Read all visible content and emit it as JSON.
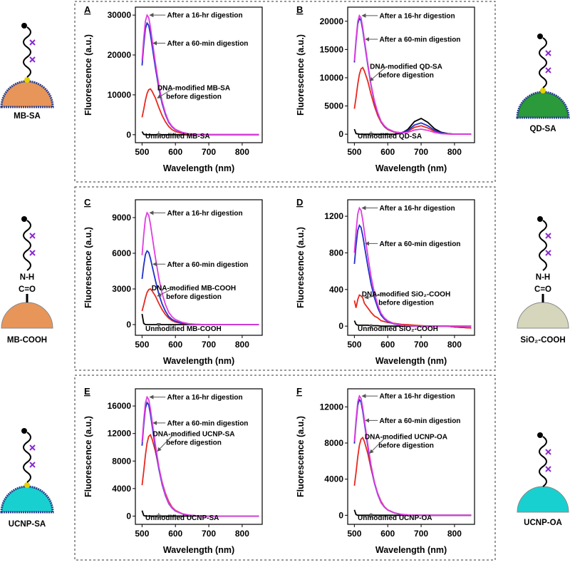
{
  "chart_data": [
    {
      "type": "line",
      "panel": "A",
      "xlabel": "Wavelength (nm)",
      "ylabel": "Fluorescence (a.u.)",
      "xlim": [
        480,
        860
      ],
      "ylim": [
        -2000,
        32000
      ],
      "xticks": [
        500,
        600,
        700,
        800
      ],
      "yticks": [
        0,
        10000,
        20000,
        30000
      ],
      "x": [
        500,
        505,
        510,
        515,
        520,
        525,
        530,
        540,
        550,
        560,
        570,
        580,
        590,
        600,
        620,
        640,
        660,
        680,
        700,
        720,
        740,
        760,
        780,
        800,
        850
      ],
      "series": [
        {
          "name": "Unmodified MB-SA",
          "color": "#000000",
          "values": [
            800,
            100,
            0,
            0,
            0,
            0,
            0,
            0,
            0,
            0,
            0,
            0,
            0,
            0,
            0,
            0,
            0,
            0,
            0,
            0,
            0,
            0,
            0,
            0,
            0
          ]
        },
        {
          "name": [
            "DNA-modified MB-SA",
            "before digestion"
          ],
          "color": "#e8281e",
          "values": [
            4370,
            6325,
            8625,
            10350,
            11270,
            11500,
            10925,
            9200,
            6900,
            4830,
            3220,
            2070,
            1265,
            805,
            345,
            138,
            58,
            23,
            0,
            0,
            0,
            0,
            0,
            0,
            0
          ]
        },
        {
          "name": "After a 60-min digestion",
          "color": "#2030c8",
          "values": [
            17360,
            22400,
            26600,
            28000,
            27440,
            25200,
            22400,
            16800,
            11760,
            7840,
            5040,
            3080,
            1960,
            1260,
            560,
            224,
            84,
            28,
            0,
            0,
            0,
            0,
            0,
            0,
            0
          ]
        },
        {
          "name": "After a 16-hr digestion",
          "color": "#e03ce0",
          "values": [
            18600,
            24000,
            28500,
            30000,
            29400,
            27000,
            24000,
            18000,
            12600,
            8400,
            5400,
            3300,
            2100,
            1350,
            600,
            240,
            90,
            30,
            0,
            0,
            0,
            0,
            0,
            0,
            0
          ]
        }
      ]
    },
    {
      "type": "line",
      "panel": "B",
      "xlabel": "Wavelength (nm)",
      "ylabel": "Fluorescence (a.u.)",
      "xlim": [
        480,
        860
      ],
      "ylim": [
        -1500,
        22500
      ],
      "xticks": [
        500,
        600,
        700,
        800
      ],
      "yticks": [
        0,
        5000,
        10000,
        15000,
        20000
      ],
      "x": [
        500,
        505,
        510,
        515,
        520,
        525,
        530,
        540,
        550,
        560,
        570,
        580,
        590,
        600,
        620,
        640,
        660,
        680,
        700,
        720,
        740,
        760,
        780,
        800,
        850
      ],
      "series": [
        {
          "name": "Unmodified QD-SA",
          "color": "#000000",
          "values": [
            900,
            100,
            50,
            0,
            0,
            0,
            0,
            0,
            0,
            0,
            0,
            0,
            0,
            0,
            0,
            140,
            840,
            2240,
            2800,
            2100,
            980,
            340,
            110,
            0,
            0
          ]
        },
        {
          "name": [
            "DNA-modified QD-SA",
            "before digestion"
          ],
          "color": "#e8281e",
          "values": [
            4500,
            6500,
            8850,
            10600,
            11560,
            11800,
            11200,
            9440,
            7080,
            4960,
            3300,
            2120,
            1300,
            830,
            350,
            220,
            510,
            1220,
            1500,
            1120,
            520,
            180,
            60,
            0,
            0
          ]
        },
        {
          "name": "After a 60-min digestion",
          "color": "#2030c8",
          "values": [
            12700,
            16400,
            19500,
            20500,
            20100,
            18450,
            16400,
            12300,
            8600,
            5700,
            3700,
            2250,
            1430,
            920,
            410,
            260,
            640,
            1620,
            2000,
            1500,
            700,
            240,
            80,
            0,
            0
          ]
        },
        {
          "name": "After a 16-hr digestion",
          "color": "#e03ce0",
          "values": [
            13000,
            16800,
            19950,
            21000,
            20600,
            18900,
            16800,
            12600,
            8800,
            5900,
            3800,
            2300,
            1500,
            950,
            420,
            210,
            330,
            740,
            900,
            680,
            320,
            110,
            40,
            0,
            0
          ]
        }
      ]
    },
    {
      "type": "line",
      "panel": "C",
      "xlabel": "Wavelength (nm)",
      "ylabel": "Fluorescence (a.u.)",
      "xlim": [
        480,
        860
      ],
      "ylim": [
        -900,
        10500
      ],
      "xticks": [
        500,
        600,
        700,
        800
      ],
      "yticks": [
        0,
        3000,
        6000,
        9000
      ],
      "x": [
        500,
        505,
        510,
        515,
        520,
        525,
        530,
        540,
        550,
        560,
        570,
        580,
        590,
        600,
        620,
        640,
        660,
        680,
        700,
        720,
        740,
        760,
        780,
        800,
        850
      ],
      "series": [
        {
          "name": "Unmodified MB-COOH",
          "color": "#000000",
          "values": [
            900,
            100,
            0,
            0,
            0,
            0,
            0,
            0,
            0,
            0,
            0,
            0,
            0,
            0,
            0,
            0,
            0,
            0,
            0,
            0,
            0,
            0,
            0,
            0,
            0
          ]
        },
        {
          "name": [
            "DNA-modified MB-COOH",
            "before digestion"
          ],
          "color": "#e8281e",
          "values": [
            1140,
            1650,
            2250,
            2700,
            2940,
            3000,
            2850,
            2400,
            1800,
            1260,
            840,
            540,
            330,
            210,
            90,
            36,
            15,
            6,
            0,
            0,
            0,
            0,
            0,
            0,
            0
          ]
        },
        {
          "name": "After a 60-min digestion",
          "color": "#2030c8",
          "values": [
            3840,
            4960,
            5890,
            6200,
            6080,
            5580,
            4960,
            3720,
            2600,
            1740,
            1120,
            680,
            430,
            280,
            120,
            50,
            19,
            6,
            0,
            0,
            0,
            0,
            0,
            0,
            0
          ]
        },
        {
          "name": "After a 16-hr digestion",
          "color": "#e03ce0",
          "values": [
            5830,
            7520,
            8930,
            9400,
            9210,
            8460,
            7520,
            5640,
            3950,
            2630,
            1690,
            1030,
            660,
            420,
            190,
            75,
            28,
            9,
            0,
            0,
            0,
            0,
            0,
            0,
            0
          ]
        }
      ]
    },
    {
      "type": "line",
      "panel": "D",
      "xlabel": "Wavelength (nm)",
      "ylabel": "Fluorescence (a.u.)",
      "xlim": [
        480,
        860
      ],
      "ylim": [
        -100,
        1380
      ],
      "xticks": [
        500,
        600,
        700,
        800
      ],
      "yticks": [
        0,
        400,
        800,
        1200
      ],
      "x": [
        500,
        505,
        510,
        515,
        520,
        525,
        530,
        540,
        550,
        560,
        570,
        580,
        590,
        600,
        620,
        640,
        660,
        680,
        700,
        720,
        740,
        760,
        780,
        800,
        850
      ],
      "series": [
        {
          "name": "Unmodified SiO₂-COOH",
          "color": "#000000",
          "values": [
            60,
            20,
            10,
            10,
            10,
            10,
            10,
            10,
            5,
            5,
            5,
            0,
            0,
            0,
            0,
            0,
            0,
            0,
            0,
            0,
            0,
            0,
            0,
            -10,
            -20
          ]
        },
        {
          "name": [
            "DNA-modified SiO₂-COOH",
            "before digestion"
          ],
          "color": "#e8281e",
          "values": [
            280,
            200,
            290,
            340,
            330,
            310,
            250,
            200,
            150,
            110,
            90,
            60,
            50,
            40,
            30,
            20,
            15,
            10,
            5,
            0,
            0,
            0,
            0,
            -10,
            -20
          ]
        },
        {
          "name": "After a 60-min digestion",
          "color": "#2030c8",
          "values": [
            680,
            880,
            1045,
            1100,
            1078,
            990,
            880,
            660,
            460,
            310,
            200,
            120,
            77,
            50,
            22,
            9,
            3,
            1,
            0,
            0,
            0,
            0,
            0,
            0,
            0
          ]
        },
        {
          "name": "After a 16-hr digestion",
          "color": "#e03ce0",
          "values": [
            800,
            1030,
            1225,
            1290,
            1264,
            1160,
            1030,
            775,
            540,
            360,
            230,
            140,
            90,
            58,
            26,
            10,
            4,
            1,
            0,
            0,
            0,
            0,
            0,
            0,
            0
          ]
        }
      ]
    },
    {
      "type": "line",
      "panel": "E",
      "xlabel": "Wavelength (nm)",
      "ylabel": "Fluorescence (a.u.)",
      "xlim": [
        480,
        860
      ],
      "ylim": [
        -1200,
        18500
      ],
      "xticks": [
        500,
        600,
        700,
        800
      ],
      "yticks": [
        0,
        4000,
        8000,
        12000,
        16000
      ],
      "x": [
        500,
        505,
        510,
        515,
        520,
        525,
        530,
        540,
        550,
        560,
        570,
        580,
        590,
        600,
        620,
        640,
        660,
        680,
        700,
        720,
        740,
        760,
        780,
        800,
        850
      ],
      "series": [
        {
          "name": "Unmodified UCNP-SA",
          "color": "#000000",
          "values": [
            800,
            100,
            0,
            0,
            0,
            0,
            0,
            0,
            0,
            0,
            0,
            0,
            0,
            0,
            0,
            0,
            0,
            0,
            0,
            0,
            0,
            0,
            0,
            0,
            0
          ]
        },
        {
          "name": [
            "DNA-modified UCNP-SA",
            "before digestion"
          ],
          "color": "#e8281e",
          "values": [
            4480,
            6490,
            8850,
            10620,
            11560,
            11800,
            11210,
            9440,
            7080,
            4960,
            3300,
            2120,
            1300,
            830,
            350,
            140,
            60,
            24,
            0,
            0,
            0,
            0,
            0,
            0,
            0
          ]
        },
        {
          "name": "After a 60-min digestion",
          "color": "#2030c8",
          "values": [
            10230,
            13200,
            15680,
            16500,
            16170,
            14850,
            13200,
            9900,
            6930,
            4620,
            2970,
            1820,
            1160,
            740,
            330,
            130,
            50,
            17,
            0,
            0,
            0,
            0,
            0,
            0,
            0
          ]
        },
        {
          "name": "After a 16-hr digestion",
          "color": "#e03ce0",
          "values": [
            10730,
            13840,
            16440,
            17300,
            16950,
            15570,
            13840,
            10380,
            7270,
            4840,
            3110,
            1900,
            1210,
            780,
            350,
            140,
            52,
            17,
            0,
            0,
            0,
            0,
            0,
            0,
            0
          ]
        }
      ]
    },
    {
      "type": "line",
      "panel": "F",
      "xlabel": "Wavelength (nm)",
      "ylabel": "Fluorescence (a.u.)",
      "xlim": [
        480,
        860
      ],
      "ylim": [
        -1000,
        14000
      ],
      "xticks": [
        500,
        600,
        700,
        800
      ],
      "yticks": [
        0,
        4000,
        8000,
        12000
      ],
      "x": [
        500,
        505,
        510,
        515,
        520,
        525,
        530,
        540,
        550,
        560,
        570,
        580,
        590,
        600,
        620,
        640,
        660,
        680,
        700,
        720,
        740,
        760,
        780,
        800,
        850
      ],
      "series": [
        {
          "name": "Unmodified UCNP-OA",
          "color": "#000000",
          "values": [
            600,
            80,
            0,
            0,
            0,
            0,
            0,
            0,
            0,
            0,
            0,
            0,
            0,
            0,
            0,
            0,
            0,
            0,
            0,
            0,
            0,
            0,
            0,
            0,
            0
          ]
        },
        {
          "name": [
            "DNA-modified UCNP-OA",
            "before digestion"
          ],
          "color": "#e8281e",
          "values": [
            3270,
            4730,
            6450,
            7740,
            8430,
            8600,
            8170,
            6880,
            5160,
            3610,
            2410,
            1550,
            950,
            600,
            260,
            100,
            43,
            17,
            0,
            0,
            0,
            0,
            0,
            0,
            0
          ]
        },
        {
          "name": "After a 60-min digestion",
          "color": "#2030c8",
          "values": [
            7940,
            10240,
            12160,
            12800,
            12540,
            11520,
            10240,
            7680,
            5380,
            3580,
            2300,
            1410,
            900,
            580,
            260,
            100,
            38,
            13,
            0,
            0,
            0,
            0,
            0,
            0,
            0
          ]
        },
        {
          "name": "After a 16-hr digestion",
          "color": "#e03ce0",
          "values": [
            8180,
            10560,
            12540,
            13200,
            12940,
            11880,
            10560,
            7920,
            5540,
            3700,
            2380,
            1450,
            920,
            590,
            260,
            110,
            40,
            13,
            0,
            0,
            0,
            0,
            0,
            0,
            0
          ]
        }
      ]
    }
  ],
  "illustrations": [
    {
      "label": "MB-SA"
    },
    {
      "label": "QD-SA"
    },
    {
      "label": "MB-COOH",
      "linker": [
        "N-H",
        "C=O"
      ]
    },
    {
      "label": "SiO₂-COOH",
      "linker": [
        "N-H",
        "C=O"
      ]
    },
    {
      "label": "UCNP-SA"
    },
    {
      "label": "UCNP-OA"
    }
  ]
}
